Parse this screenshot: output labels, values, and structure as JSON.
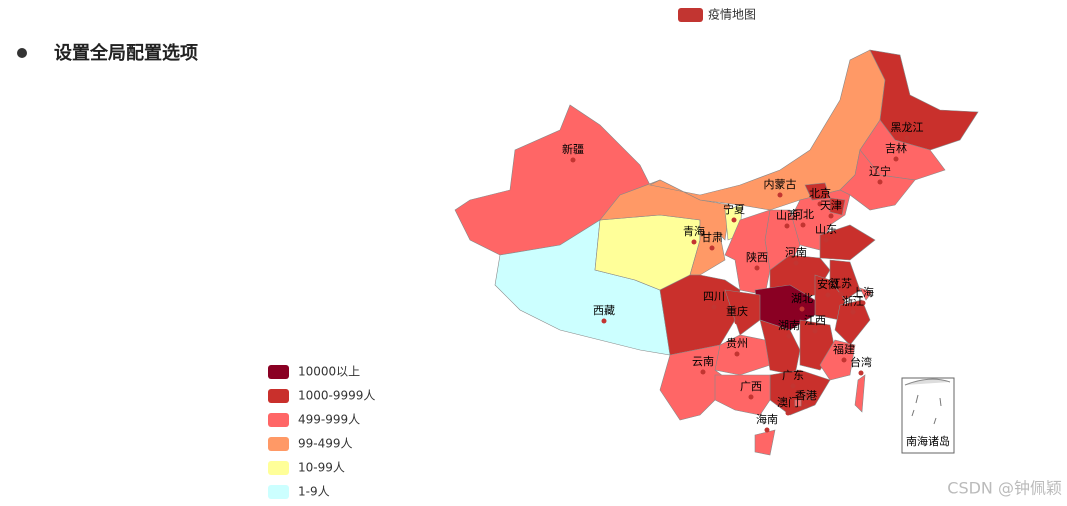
{
  "header": {
    "bullet_text": "设置全局配置选项"
  },
  "map": {
    "legend_title": "疫情地图",
    "legend_color": "#c23531",
    "pieces": [
      {
        "label": "10000以上",
        "color": "#8a0023"
      },
      {
        "label": "1000-9999人",
        "color": "#c9302c"
      },
      {
        "label": "499-999人",
        "color": "#ff6666"
      },
      {
        "label": "99-499人",
        "color": "#ff9966"
      },
      {
        "label": "10-99人",
        "color": "#ffff99"
      },
      {
        "label": "1-9人",
        "color": "#ccffff"
      }
    ],
    "provinces": [
      {
        "name": "新疆",
        "level": 2
      },
      {
        "name": "西藏",
        "level": 5
      },
      {
        "name": "青海",
        "level": 4
      },
      {
        "name": "甘肃",
        "level": 3
      },
      {
        "name": "内蒙古",
        "level": 3
      },
      {
        "name": "黑龙江",
        "level": 1
      },
      {
        "name": "吉林",
        "level": 2
      },
      {
        "name": "辽宁",
        "level": 2
      },
      {
        "name": "河北",
        "level": 2
      },
      {
        "name": "北京",
        "level": 1
      },
      {
        "name": "天津",
        "level": 1
      },
      {
        "name": "山西",
        "level": 2
      },
      {
        "name": "宁夏",
        "level": 4
      },
      {
        "name": "陕西",
        "level": 2
      },
      {
        "name": "山东",
        "level": 1
      },
      {
        "name": "河南",
        "level": 1
      },
      {
        "name": "江苏",
        "level": 1
      },
      {
        "name": "安徽",
        "level": 1
      },
      {
        "name": "上海",
        "level": 2
      },
      {
        "name": "浙江",
        "level": 1
      },
      {
        "name": "湖北",
        "level": 0
      },
      {
        "name": "四川",
        "level": 1
      },
      {
        "name": "重庆",
        "level": 1
      },
      {
        "name": "贵州",
        "level": 2
      },
      {
        "name": "云南",
        "level": 2
      },
      {
        "name": "湖南",
        "level": 1
      },
      {
        "name": "江西",
        "level": 1
      },
      {
        "name": "福建",
        "level": 2
      },
      {
        "name": "广东",
        "level": 1
      },
      {
        "name": "广西",
        "level": 2
      },
      {
        "name": "海南",
        "level": 2
      },
      {
        "name": "台湾",
        "level": 2
      },
      {
        "name": "香港",
        "level": 1
      },
      {
        "name": "澳门",
        "level": 2
      }
    ],
    "inset_label": "南海诸岛"
  },
  "watermark": "CSDN @钟佩颖"
}
